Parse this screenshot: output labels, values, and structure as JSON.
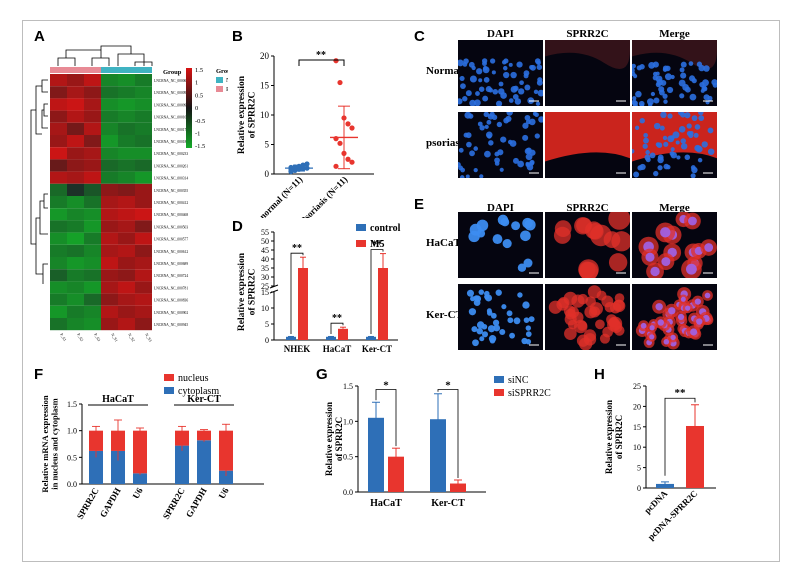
{
  "panels": {
    "A": "A",
    "B": "B",
    "C": "C",
    "D": "D",
    "E": "E",
    "F": "F",
    "G": "G",
    "H": "H"
  },
  "heatmap": {
    "legend_title": "Group",
    "groups": [
      "NC",
      "Psoriasis"
    ],
    "group_colors": {
      "NC": "#3fb3c2",
      "Psoriasis": "#e88a95"
    },
    "colorbar_ticks": [
      "1.5",
      "1",
      "0.5",
      "0",
      "-0.5",
      "-1",
      "-1.5"
    ],
    "row_labels": [
      "LNCRNA_NC_000061",
      "LNCRNA_NC_000094",
      "LNCRNA_NC_000097",
      "LNCRNA_NC_000103",
      "LNCRNA_NC_000176",
      "LNCRNA_NC_000185",
      "LNCRNA_NC_000233",
      "LNCRNA_NC_000261",
      "LNCRNA_NC_000314",
      "LNCRNA_NC_000355",
      "LNCRNA_NC_000412",
      "LNCRNA_NC_000468",
      "LNCRNA_NC_000503",
      "LNCRNA_NC_000577",
      "LNCRNA_NC_000612",
      "LNCRNA_NC_000689",
      "LNCRNA_NC_000724",
      "LNCRNA_NC_000781",
      "LNCRNA_NC_000836",
      "LNCRNA_NC_000902",
      "LNCRNA_NC_000945"
    ],
    "col_labels": [
      "P_S1",
      "P_S2",
      "P_S3",
      "N_S1",
      "N_S2",
      "N_S3"
    ],
    "values": [
      [
        1.2,
        1.0,
        1.3,
        -1.1,
        -1.2,
        -1.0
      ],
      [
        0.8,
        1.1,
        0.9,
        -0.9,
        -1.0,
        -1.1
      ],
      [
        1.3,
        1.4,
        1.1,
        -1.2,
        -1.3,
        -1.2
      ],
      [
        0.9,
        1.2,
        1.0,
        -1.0,
        -1.1,
        -1.0
      ],
      [
        1.1,
        0.7,
        1.2,
        -1.1,
        -0.9,
        -1.0
      ],
      [
        1.0,
        1.3,
        0.8,
        -1.3,
        -1.0,
        -0.9
      ],
      [
        1.4,
        1.0,
        1.1,
        -1.1,
        -1.2,
        -1.2
      ],
      [
        0.6,
        0.9,
        1.0,
        -0.8,
        -0.9,
        -0.8
      ],
      [
        1.2,
        1.1,
        1.3,
        -1.0,
        -1.1,
        -1.3
      ],
      [
        -0.8,
        -0.2,
        -0.6,
        0.9,
        0.8,
        1.0
      ],
      [
        -1.0,
        -1.2,
        -0.9,
        1.1,
        1.2,
        1.0
      ],
      [
        -1.3,
        -1.1,
        -1.2,
        1.2,
        1.3,
        1.4
      ],
      [
        -0.9,
        -1.0,
        -1.3,
        1.0,
        1.1,
        0.8
      ],
      [
        -1.2,
        -1.4,
        -1.0,
        1.2,
        1.0,
        1.3
      ],
      [
        -1.0,
        -0.9,
        -1.1,
        1.1,
        1.2,
        0.9
      ],
      [
        -1.1,
        -1.3,
        -1.2,
        1.3,
        1.0,
        1.1
      ],
      [
        -0.7,
        -1.0,
        -0.9,
        1.0,
        0.9,
        1.2
      ],
      [
        -1.2,
        -1.1,
        -1.3,
        1.1,
        1.3,
        1.0
      ],
      [
        -1.0,
        -1.2,
        -0.8,
        0.9,
        1.1,
        1.2
      ],
      [
        -1.3,
        -1.0,
        -1.1,
        1.2,
        1.0,
        1.1
      ],
      [
        -0.9,
        -1.1,
        -1.2,
        1.0,
        1.2,
        0.9
      ]
    ]
  },
  "microscopy": {
    "C": {
      "cols": [
        "DAPI",
        "SPRR2C",
        "Merge"
      ],
      "rows": [
        "Normal",
        "psoriasis"
      ]
    },
    "E": {
      "cols": [
        "DAPI",
        "SPRR2C",
        "Merge"
      ],
      "rows": [
        "HaCaT",
        "Ker-CT"
      ]
    }
  },
  "chart_data": [
    {
      "panel": "B",
      "type": "scatter",
      "ylabel": "Relative expression\nof SPRR2C",
      "ylim": [
        0,
        20
      ],
      "yticks": [
        0,
        5,
        10,
        15,
        20
      ],
      "categories": [
        "normal (N=11)",
        "Psoriasis (N=11)"
      ],
      "series": [
        {
          "category": "normal (N=11)",
          "color": "#2e6fb7",
          "mean": 1.0,
          "sd": 0.5,
          "values": [
            0.4,
            0.6,
            0.8,
            0.9,
            1.0,
            1.1,
            1.2,
            1.3,
            1.5,
            1.7,
            0.7
          ]
        },
        {
          "category": "Psoriasis (N=11)",
          "color": "#e8352e",
          "mean": 6.2,
          "sd": 5.3,
          "values": [
            19.2,
            15.5,
            9.5,
            8.5,
            7.8,
            6.0,
            5.2,
            3.5,
            2.5,
            2.0,
            1.3
          ]
        }
      ],
      "significance": "**"
    },
    {
      "panel": "D",
      "type": "bar",
      "ylabel": "Relative expression\nof SPRR2C",
      "categories": [
        "NHEK",
        "HaCaT",
        "Ker-CT"
      ],
      "yticks_lower": [
        0,
        5,
        10,
        15
      ],
      "yticks_upper": [
        25,
        30,
        35,
        40,
        45,
        50,
        55
      ],
      "series": [
        {
          "name": "control",
          "color": "#2e6fb7",
          "values": [
            1.0,
            1.0,
            1.0
          ],
          "errors": [
            0.1,
            0.1,
            0.1
          ]
        },
        {
          "name": "M5",
          "color": "#e8352e",
          "values": [
            35,
            3.5,
            35
          ],
          "errors": [
            6,
            0.5,
            8
          ]
        }
      ],
      "significance": [
        "**",
        "**",
        "**"
      ]
    },
    {
      "panel": "F",
      "type": "bar",
      "stacked": true,
      "ylabel": "Relative mRNA expression\nin nucleus and cytoplasm",
      "ylim": [
        0,
        1.5
      ],
      "yticks": [
        0.0,
        0.5,
        1.0,
        1.5
      ],
      "groups": [
        "HaCaT",
        "Ker-CT"
      ],
      "categories": [
        "SPRR2C",
        "GAPDH",
        "U6",
        "SPRR2C",
        "GAPDH",
        "U6"
      ],
      "series": [
        {
          "name": "cytoplasm",
          "color": "#2e6fb7",
          "values": [
            0.62,
            0.62,
            0.2,
            0.72,
            0.82,
            0.25
          ],
          "errors": [
            0.12,
            0.18,
            0.03,
            0.1,
            0.03,
            0.1
          ]
        },
        {
          "name": "nucleus",
          "color": "#e8352e",
          "values": [
            0.38,
            0.38,
            0.8,
            0.28,
            0.18,
            0.75
          ],
          "errors": [
            0.08,
            0.2,
            0.05,
            0.08,
            0.02,
            0.12
          ]
        }
      ]
    },
    {
      "panel": "G",
      "type": "bar",
      "ylabel": "Relative expression\nof SPRR2C",
      "ylim": [
        0,
        1.5
      ],
      "yticks": [
        0.0,
        0.5,
        1.0,
        1.5
      ],
      "categories": [
        "HaCaT",
        "Ker-CT"
      ],
      "series": [
        {
          "name": "siNC",
          "color": "#2e6fb7",
          "values": [
            1.05,
            1.03
          ],
          "errors": [
            0.22,
            0.36
          ]
        },
        {
          "name": "siSPRR2C",
          "color": "#e8352e",
          "values": [
            0.5,
            0.12
          ],
          "errors": [
            0.12,
            0.05
          ]
        }
      ],
      "significance": [
        "*",
        "*"
      ]
    },
    {
      "panel": "H",
      "type": "bar",
      "ylabel": "Relative expression\nof SPRR2C",
      "ylim": [
        0,
        25
      ],
      "yticks": [
        0,
        5,
        10,
        15,
        20,
        25
      ],
      "categories": [
        "pcDNA",
        "pcDNA-SPRR2C"
      ],
      "series": [
        {
          "name": "",
          "colors": [
            "#2e6fb7",
            "#e8352e"
          ],
          "values": [
            1.0,
            15.2
          ],
          "errors": [
            0.5,
            5.2
          ]
        }
      ],
      "significance": "**"
    }
  ]
}
